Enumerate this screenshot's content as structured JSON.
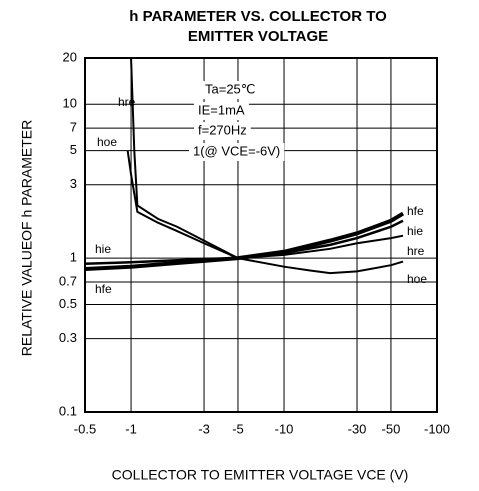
{
  "chart_data": {
    "type": "line",
    "title": [
      "h PARAMETER VS. COLLECTOR TO",
      "EMITTER VOLTAGE"
    ],
    "x_label": "COLLECTOR TO EMITTER VOLTAGE VCE (V)",
    "y_label": "RELATIVE VALUEOF h PARAMETER",
    "annotations": [
      "Ta=25℃",
      "IE=1mA",
      "f=270Hz",
      "1(@ VCE=-6V)"
    ],
    "xscale": "log",
    "yscale": "log",
    "grid": true,
    "xlim": [
      -0.5,
      -100
    ],
    "ylim": [
      0.1,
      20
    ],
    "xticks": [
      -0.5,
      -1,
      -3,
      -5,
      -10,
      -30,
      -50,
      -100
    ],
    "yticks": [
      0.1,
      0.3,
      0.5,
      0.7,
      1,
      3,
      5,
      7,
      10,
      20
    ],
    "series": [
      {
        "name": "hfe",
        "color": "#000000",
        "x": [
          -0.5,
          -1,
          -2,
          -3,
          -5,
          -10,
          -20,
          -30,
          -50,
          -60
        ],
        "values": [
          0.85,
          0.88,
          0.93,
          0.96,
          1,
          1.1,
          1.3,
          1.45,
          1.75,
          1.95
        ]
      },
      {
        "name": "hie",
        "color": "#000000",
        "x": [
          -0.5,
          -1,
          -2,
          -3,
          -5,
          -10,
          -20,
          -30,
          -50,
          -60
        ],
        "values": [
          0.92,
          0.94,
          0.97,
          0.99,
          1,
          1.08,
          1.22,
          1.35,
          1.6,
          1.75
        ]
      },
      {
        "name": "hre",
        "color": "#000000",
        "x": [
          -1,
          -1.05,
          -1.1,
          -1.5,
          -2,
          -3,
          -5,
          -10,
          -20,
          -30,
          -50,
          -60
        ],
        "values": [
          20,
          5,
          2.2,
          1.8,
          1.6,
          1.3,
          1,
          1.05,
          1.15,
          1.25,
          1.35,
          1.4
        ]
      },
      {
        "name": "hoe",
        "color": "#000000",
        "x": [
          -0.95,
          -1,
          -1.1,
          -1.5,
          -2,
          -3,
          -5,
          -10,
          -15,
          -20,
          -30,
          -50,
          -60
        ],
        "values": [
          5,
          3.5,
          2,
          1.7,
          1.5,
          1.25,
          1,
          0.88,
          0.83,
          0.8,
          0.82,
          0.9,
          0.95
        ]
      }
    ]
  }
}
